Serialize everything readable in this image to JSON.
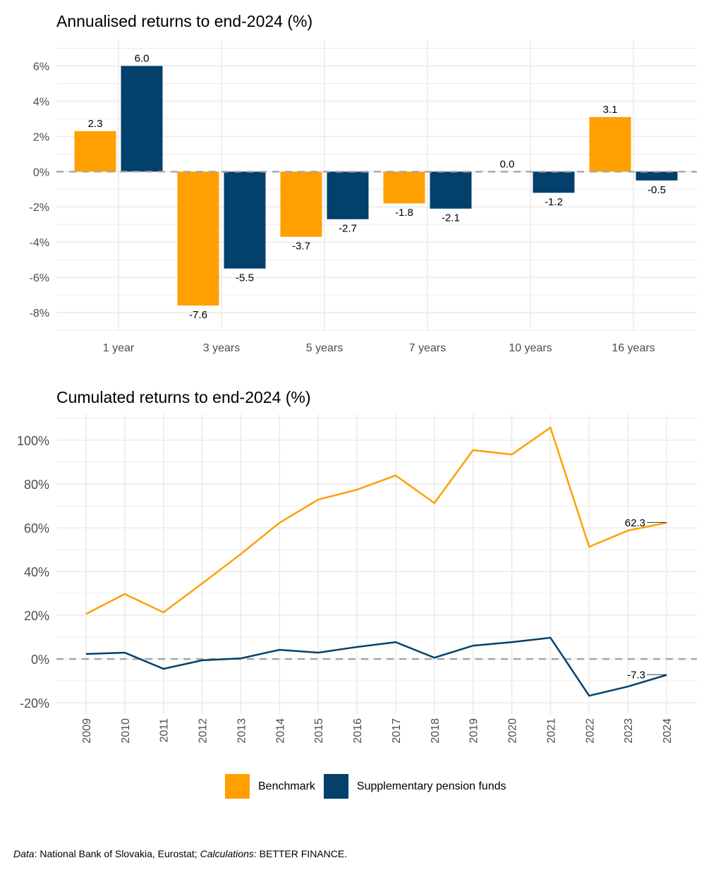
{
  "colors": {
    "benchmark": "#ffa000",
    "spf": "#03406b",
    "grid": "#ebebeb",
    "zero_line": "#a6a6a6",
    "axis_text": "#4d4d4d"
  },
  "legend": {
    "items": [
      {
        "label": "Benchmark",
        "color": "#ffa000"
      },
      {
        "label": "Supplementary pension funds",
        "color": "#03406b"
      }
    ]
  },
  "caption": {
    "data_label": "Data",
    "data_text": ": National Bank of Slovakia, Eurostat; ",
    "calc_label": "Calculations",
    "calc_text": ": BETTER FINANCE."
  },
  "chart_data": [
    {
      "type": "bar",
      "title": "Annualised returns to end-2024 (%)",
      "xlabel": "",
      "ylabel": "",
      "categories": [
        "1 year",
        "3 years",
        "5 years",
        "7 years",
        "10 years",
        "16 years"
      ],
      "series": [
        {
          "name": "Benchmark",
          "values": [
            2.3,
            -7.6,
            -3.7,
            -1.8,
            0.0,
            3.1
          ]
        },
        {
          "name": "Supplementary pension funds",
          "values": [
            6.0,
            -5.5,
            -2.7,
            -2.1,
            -1.2,
            -0.5
          ]
        }
      ],
      "data_labels": [
        [
          "2.3",
          "-7.6",
          "-3.7",
          "-1.8",
          "0.0",
          "3.1"
        ],
        [
          "6.0",
          "-5.5",
          "-2.7",
          "-2.1",
          "-1.2",
          "-0.5"
        ]
      ],
      "ylim": [
        -9,
        7.5
      ],
      "yticks": [
        -8,
        -6,
        -4,
        -2,
        0,
        2,
        4,
        6
      ],
      "ytick_labels": [
        "-8%",
        "-6%",
        "-4%",
        "-2%",
        "0%",
        "2%",
        "4%",
        "6%"
      ],
      "reference_line": 0,
      "grid": true,
      "legend": "bottom"
    },
    {
      "type": "line",
      "title": "Cumulated returns to end-2024 (%)",
      "xlabel": "",
      "ylabel": "",
      "x": [
        2009,
        2010,
        2011,
        2012,
        2013,
        2014,
        2015,
        2016,
        2017,
        2018,
        2019,
        2020,
        2021,
        2022,
        2023,
        2024
      ],
      "xtick_labels": [
        "2009",
        "2010",
        "2011",
        "2012",
        "2013",
        "2014",
        "2015",
        "2016",
        "2017",
        "2018",
        "2019",
        "2020",
        "2021",
        "2022",
        "2023",
        "2024"
      ],
      "series": [
        {
          "name": "Benchmark",
          "values": [
            20.6,
            29.7,
            21.3,
            34.5,
            48.0,
            62.3,
            72.9,
            77.4,
            83.9,
            71.3,
            95.5,
            93.5,
            105.8,
            51.3,
            58.7,
            62.3
          ],
          "end_label": "62.3"
        },
        {
          "name": "Supplementary pension funds",
          "values": [
            2.3,
            2.9,
            -4.5,
            -0.6,
            0.3,
            4.2,
            2.9,
            5.5,
            7.7,
            0.6,
            6.1,
            7.7,
            9.7,
            -16.8,
            -12.6,
            -7.3
          ],
          "end_label": "-7.3"
        }
      ],
      "ylim": [
        -20,
        110
      ],
      "yticks": [
        -20,
        0,
        20,
        40,
        60,
        80,
        100
      ],
      "ytick_labels": [
        "-20%",
        "0%",
        "20%",
        "40%",
        "60%",
        "80%",
        "100%"
      ],
      "reference_line": 0,
      "grid": true,
      "legend": "bottom"
    }
  ]
}
